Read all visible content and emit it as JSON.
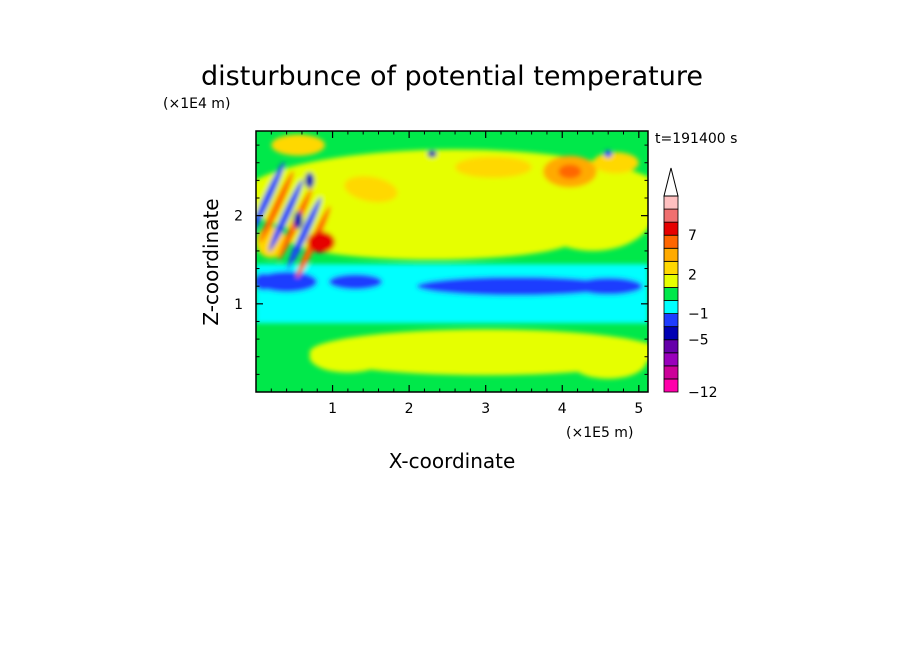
{
  "chart_data": {
    "type": "heatmap",
    "title": "disturbunce of potential temperature",
    "xlabel": "X-coordinate",
    "ylabel": "Z-coordinate",
    "x_unit": "(×1E5 m)",
    "y_unit": "(×1E4 m)",
    "time_label": "t=191400 s",
    "xlim": [
      0,
      5.12
    ],
    "ylim": [
      0,
      2.96
    ],
    "x_ticks": [
      {
        "value": 1,
        "label": "1"
      },
      {
        "value": 2,
        "label": "2"
      },
      {
        "value": 3,
        "label": "3"
      },
      {
        "value": 4,
        "label": "4"
      },
      {
        "value": 5,
        "label": "5"
      }
    ],
    "y_ticks": [
      {
        "value": 1,
        "label": "1"
      },
      {
        "value": 2,
        "label": "2"
      }
    ],
    "colorbar": {
      "extend": "max",
      "tick_labels": [
        {
          "level": 7,
          "label": "7"
        },
        {
          "level": 2,
          "label": "2"
        },
        {
          "level": -1,
          "label": "−1"
        },
        {
          "level": -5,
          "label": "−5"
        },
        {
          "level": -12,
          "label": "−12"
        }
      ],
      "colors": [
        "#ff00aa",
        "#cc0099",
        "#9900bb",
        "#6600aa",
        "#0000b4",
        "#1e3cff",
        "#00ffff",
        "#00e84a",
        "#e6ff00",
        "#ffd800",
        "#ffaa00",
        "#ff6600",
        "#e60000",
        "#f07070",
        "#ffc0c0"
      ]
    }
  }
}
